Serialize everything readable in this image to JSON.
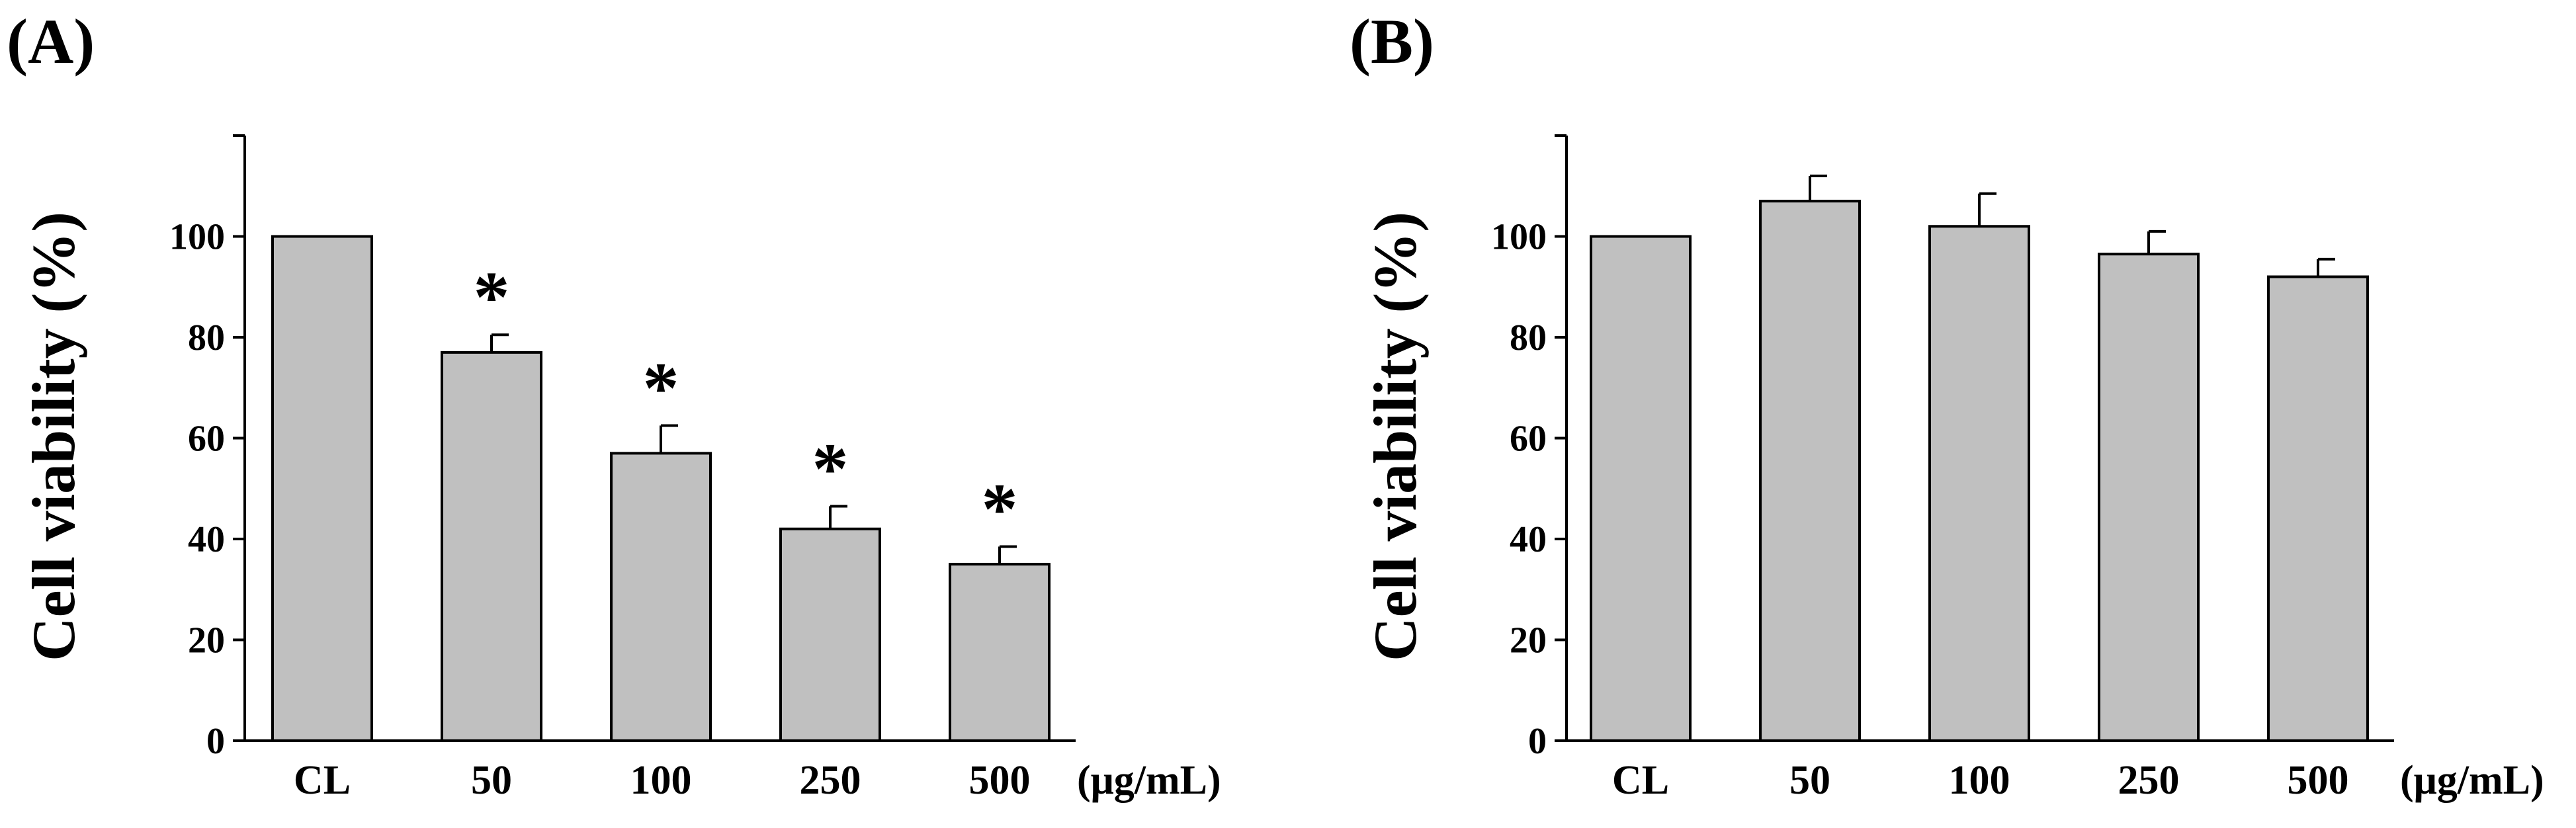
{
  "chart_data": [
    {
      "type": "bar",
      "panel": "(A)",
      "title": "",
      "ylabel": "Cell viability (%)",
      "xlabel": "(μg/mL)",
      "ylim": [
        0,
        120
      ],
      "yticks": [
        0,
        20,
        40,
        60,
        80,
        100
      ],
      "categories": [
        "CL",
        "50",
        "100",
        "250",
        "500"
      ],
      "values": [
        100,
        77,
        57,
        42,
        35
      ],
      "errors": [
        0,
        3.5,
        5.5,
        4.5,
        3.5
      ],
      "annotations": [
        "",
        "*",
        "*",
        "*",
        "*"
      ],
      "bar_color": "#c0c0c0"
    },
    {
      "type": "bar",
      "panel": "(B)",
      "title": "",
      "ylabel": "Cell viability (%)",
      "xlabel": "(μg/mL)",
      "ylim": [
        0,
        120
      ],
      "yticks": [
        0,
        20,
        40,
        60,
        80,
        100
      ],
      "categories": [
        "CL",
        "50",
        "100",
        "250",
        "500"
      ],
      "values": [
        100,
        107,
        102,
        96.5,
        92
      ],
      "errors": [
        0,
        5,
        6.5,
        4.5,
        3.5
      ],
      "annotations": [
        "",
        "",
        "",
        "",
        ""
      ],
      "bar_color": "#c0c0c0"
    }
  ]
}
